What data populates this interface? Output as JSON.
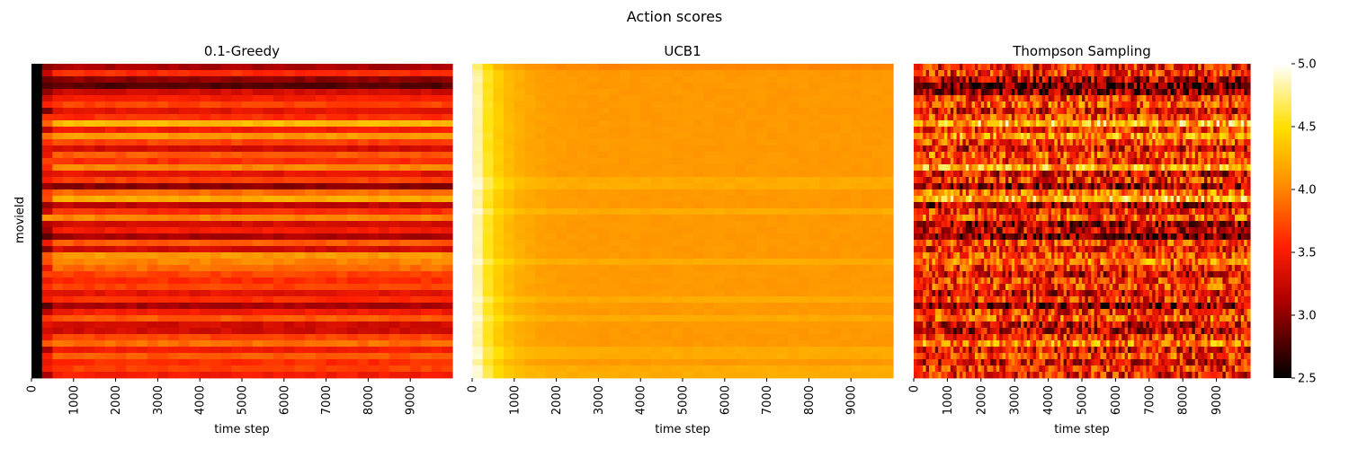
{
  "figure": {
    "suptitle": "Action scores"
  },
  "colorbar": {
    "min": 2.5,
    "max": 5.0,
    "ticks": [
      2.5,
      3.0,
      3.5,
      4.0,
      4.5,
      5.0
    ],
    "colormap": "hot"
  },
  "chart_data": [
    {
      "type": "heatmap",
      "title": "0.1-Greedy",
      "xlabel": "time step",
      "ylabel": "movieId",
      "xlim": [
        0,
        10000
      ],
      "xticks": [
        0,
        1000,
        2000,
        3000,
        4000,
        5000,
        6000,
        7000,
        8000,
        9000
      ],
      "rows": 50,
      "row_final_scores": [
        3.1,
        3.6,
        3.0,
        2.8,
        3.3,
        3.5,
        3.7,
        3.4,
        3.6,
        4.3,
        3.5,
        4.1,
        3.7,
        3.3,
        3.8,
        3.6,
        4.0,
        3.4,
        3.7,
        3.0,
        3.9,
        4.2,
        3.2,
        3.6,
        4.0,
        3.3,
        3.5,
        3.1,
        3.8,
        3.3,
        4.1,
        4.0,
        3.9,
        3.7,
        3.6,
        3.7,
        3.4,
        3.6,
        3.1,
        3.5,
        3.8,
        3.3,
        3.3,
        3.7,
        3.9,
        3.5,
        3.8,
        3.6,
        3.7,
        3.5
      ]
    },
    {
      "type": "heatmap",
      "title": "UCB1",
      "xlabel": "time step",
      "ylabel": "",
      "xlim": [
        0,
        10000
      ],
      "xticks": [
        0,
        1000,
        2000,
        3000,
        4000,
        5000,
        6000,
        7000,
        8000,
        9000
      ],
      "rows": 50,
      "row_final_scores": [
        4.0,
        4.1,
        4.1,
        4.1,
        4.1,
        4.1,
        4.1,
        4.1,
        4.1,
        4.1,
        4.1,
        4.1,
        4.1,
        4.1,
        4.1,
        4.1,
        4.1,
        4.1,
        4.2,
        4.2,
        4.1,
        4.1,
        4.1,
        4.2,
        4.1,
        4.1,
        4.1,
        4.1,
        4.1,
        4.1,
        4.1,
        4.2,
        4.1,
        4.1,
        4.1,
        4.1,
        4.1,
        4.2,
        4.1,
        4.1,
        4.2,
        4.1,
        4.1,
        4.1,
        4.1,
        4.2,
        4.2,
        4.1,
        4.2,
        4.2
      ]
    },
    {
      "type": "heatmap",
      "title": "Thompson Sampling",
      "xlabel": "time step",
      "ylabel": "",
      "xlim": [
        0,
        10000
      ],
      "xticks": [
        0,
        1000,
        2000,
        3000,
        4000,
        5000,
        6000,
        7000,
        8000,
        9000
      ],
      "rows": 50,
      "row_mean_scores": [
        3.5,
        3.6,
        3.2,
        2.9,
        3.0,
        3.6,
        3.8,
        3.4,
        3.7,
        4.3,
        3.6,
        4.1,
        3.7,
        3.4,
        3.8,
        3.6,
        4.2,
        3.3,
        3.6,
        3.1,
        3.9,
        4.3,
        3.1,
        3.6,
        3.8,
        3.1,
        3.3,
        2.9,
        3.7,
        3.5,
        3.7,
        3.9,
        3.6,
        3.3,
        3.6,
        3.7,
        3.3,
        3.6,
        3.0,
        3.6,
        3.8,
        3.3,
        3.2,
        3.6,
        4.0,
        3.4,
        3.7,
        3.4,
        3.6,
        3.5
      ]
    }
  ]
}
